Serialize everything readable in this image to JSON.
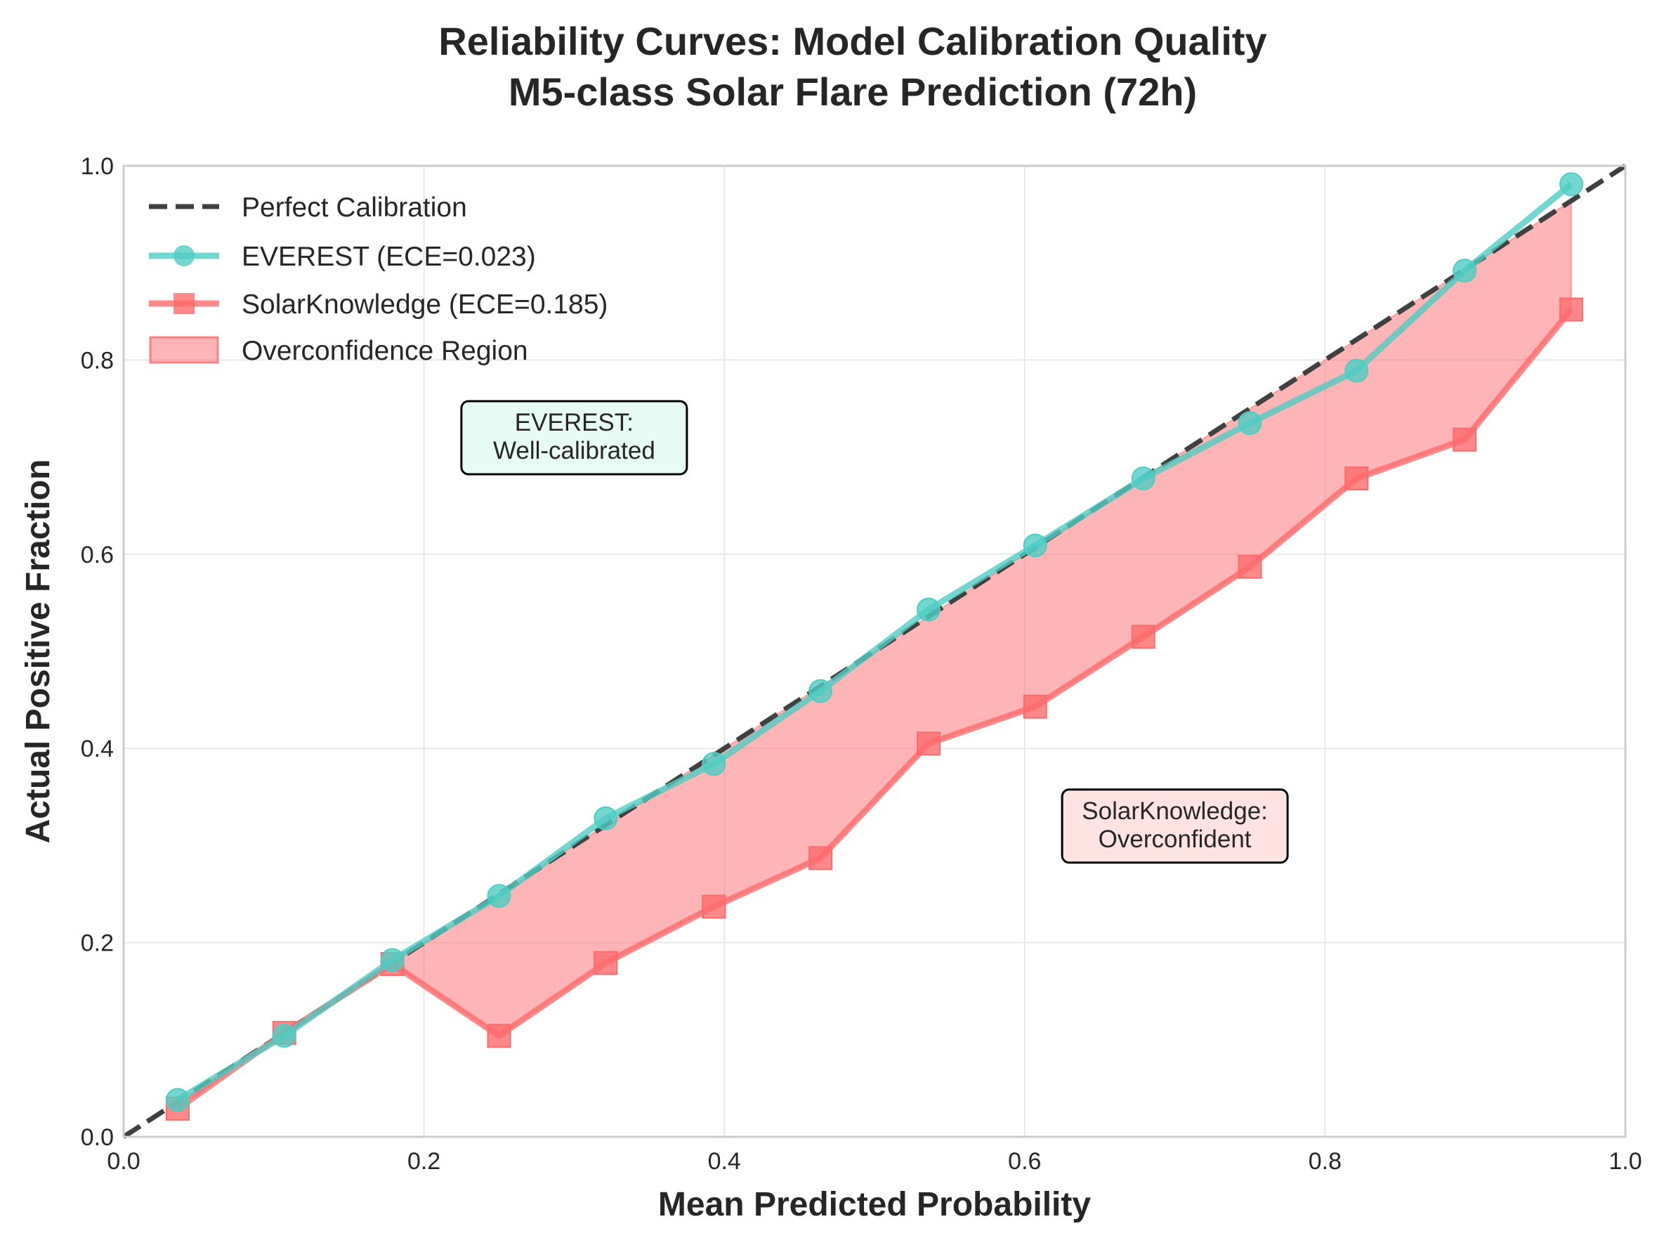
{
  "chart_data": {
    "type": "line",
    "title": "Reliability Curves: Model Calibration Quality",
    "subtitle": "M5-class Solar Flare Prediction (72h)",
    "xlabel": "Mean Predicted Probability",
    "ylabel": "Actual Positive Fraction",
    "xlim": [
      0.0,
      1.0
    ],
    "ylim": [
      0.0,
      1.0
    ],
    "xticks": [
      "0.0",
      "0.2",
      "0.4",
      "0.6",
      "0.8",
      "1.0"
    ],
    "yticks": [
      "0.0",
      "0.2",
      "0.4",
      "0.6",
      "0.8",
      "1.0"
    ],
    "grid": true,
    "legend_position": "top-left",
    "x": [
      0.036,
      0.107,
      0.179,
      0.25,
      0.321,
      0.393,
      0.464,
      0.536,
      0.607,
      0.679,
      0.75,
      0.821,
      0.893,
      0.964
    ],
    "reference_line": {
      "name": "Perfect Calibration",
      "x": [
        0.0,
        1.0
      ],
      "y": [
        0.0,
        1.0
      ],
      "color": "#404040",
      "style": "dashed"
    },
    "series": [
      {
        "name": "EVEREST (ECE=0.023)",
        "marker": "circle",
        "color": "#4ecdc4",
        "values": [
          0.038,
          0.104,
          0.182,
          0.248,
          0.328,
          0.384,
          0.459,
          0.543,
          0.609,
          0.678,
          0.735,
          0.789,
          0.892,
          0.981
        ]
      },
      {
        "name": "SolarKnowledge (ECE=0.185)",
        "marker": "square",
        "color": "#ff6b6b",
        "values": [
          0.029,
          0.107,
          0.178,
          0.104,
          0.179,
          0.237,
          0.287,
          0.405,
          0.443,
          0.515,
          0.587,
          0.678,
          0.718,
          0.852
        ]
      }
    ],
    "fill_region": {
      "name": "Overconfidence Region",
      "color": "#ff6b6b",
      "opacity": 0.5
    },
    "annotations": [
      {
        "text": [
          "EVEREST:",
          "Well-calibrated"
        ],
        "x": 0.3,
        "y": 0.72,
        "bg": "#e6fcf5"
      },
      {
        "text": [
          "SolarKnowledge:",
          "Overconfident"
        ],
        "x": 0.7,
        "y": 0.32,
        "bg": "#ffe3e3"
      }
    ]
  }
}
